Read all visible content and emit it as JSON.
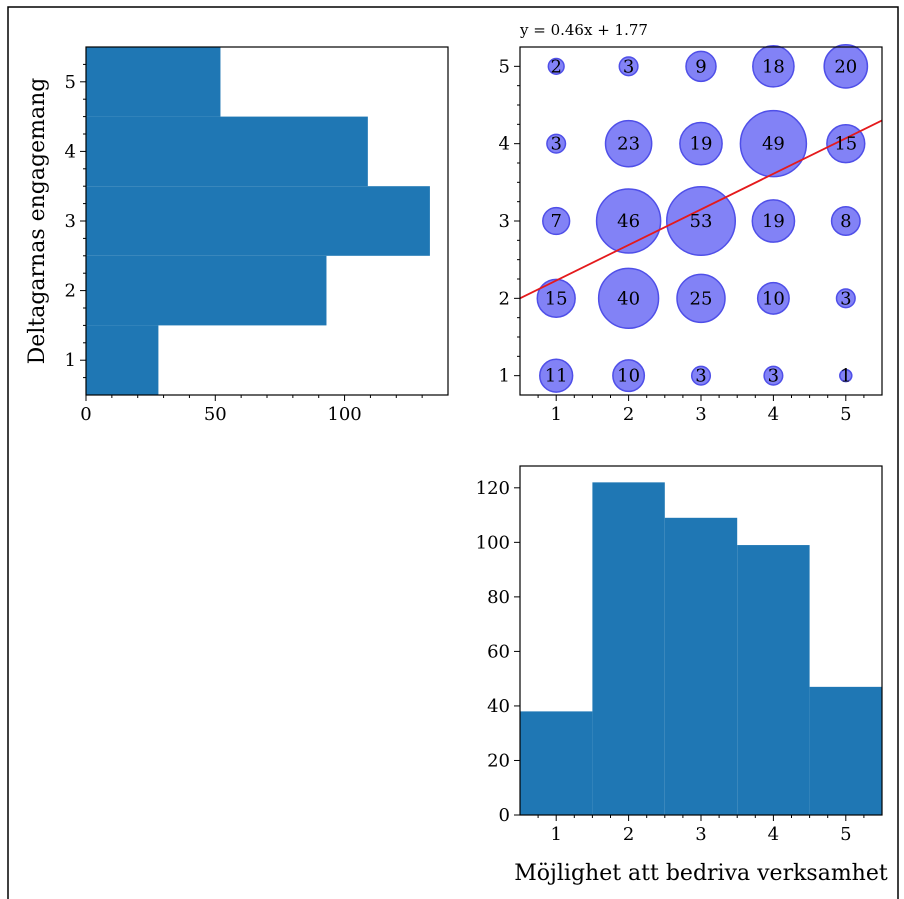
{
  "chart_data": [
    {
      "type": "bar",
      "orientation": "horizontal",
      "categories": [
        "1",
        "2",
        "3",
        "4",
        "5"
      ],
      "values": [
        28,
        93,
        133,
        109,
        52
      ],
      "ylabel": "Deltagarnas engagemang",
      "xticks": [
        "0",
        "50",
        "100"
      ],
      "xlim": [
        0,
        140
      ],
      "color": "#1f77b4"
    },
    {
      "type": "scatter",
      "equation": "y = 0.46x + 1.77",
      "regression": {
        "slope": 0.46,
        "intercept": 1.77,
        "x_range": [
          0.5,
          5.5
        ]
      },
      "xlim": [
        0.5,
        5.5
      ],
      "ylim": [
        0.75,
        5.25
      ],
      "xticks": [
        "1",
        "2",
        "3",
        "4",
        "5"
      ],
      "yticks": [
        "1",
        "2",
        "3",
        "4",
        "5"
      ],
      "points": [
        {
          "x": 1,
          "y": 5,
          "count": "2"
        },
        {
          "x": 2,
          "y": 5,
          "count": "3"
        },
        {
          "x": 3,
          "y": 5,
          "count": "9"
        },
        {
          "x": 4,
          "y": 5,
          "count": "18"
        },
        {
          "x": 5,
          "y": 5,
          "count": "20"
        },
        {
          "x": 1,
          "y": 4,
          "count": "3"
        },
        {
          "x": 2,
          "y": 4,
          "count": "23"
        },
        {
          "x": 3,
          "y": 4,
          "count": "19"
        },
        {
          "x": 4,
          "y": 4,
          "count": "49"
        },
        {
          "x": 5,
          "y": 4,
          "count": "15"
        },
        {
          "x": 1,
          "y": 3,
          "count": "7"
        },
        {
          "x": 2,
          "y": 3,
          "count": "46"
        },
        {
          "x": 3,
          "y": 3,
          "count": "53"
        },
        {
          "x": 4,
          "y": 3,
          "count": "19"
        },
        {
          "x": 5,
          "y": 3,
          "count": "8"
        },
        {
          "x": 1,
          "y": 2,
          "count": "15"
        },
        {
          "x": 2,
          "y": 2,
          "count": "40"
        },
        {
          "x": 3,
          "y": 2,
          "count": "25"
        },
        {
          "x": 4,
          "y": 2,
          "count": "10"
        },
        {
          "x": 5,
          "y": 2,
          "count": "3"
        },
        {
          "x": 1,
          "y": 1,
          "count": "11"
        },
        {
          "x": 2,
          "y": 1,
          "count": "10"
        },
        {
          "x": 3,
          "y": 1,
          "count": "3"
        },
        {
          "x": 4,
          "y": 1,
          "count": "3"
        },
        {
          "x": 5,
          "y": 1,
          "count": "1"
        }
      ],
      "bubble_color": "#7777f5",
      "bubble_edge": "#4f4fe8",
      "line_color": "#e41a1c"
    },
    {
      "type": "bar",
      "categories": [
        "1",
        "2",
        "3",
        "4",
        "5"
      ],
      "values": [
        38,
        122,
        109,
        99,
        47
      ],
      "xlabel": "Möjlighet att bedriva verksamhet",
      "yticks": [
        "0",
        "20",
        "40",
        "60",
        "80",
        "100",
        "120"
      ],
      "ylim": [
        0,
        128
      ],
      "color": "#1f77b4"
    }
  ]
}
